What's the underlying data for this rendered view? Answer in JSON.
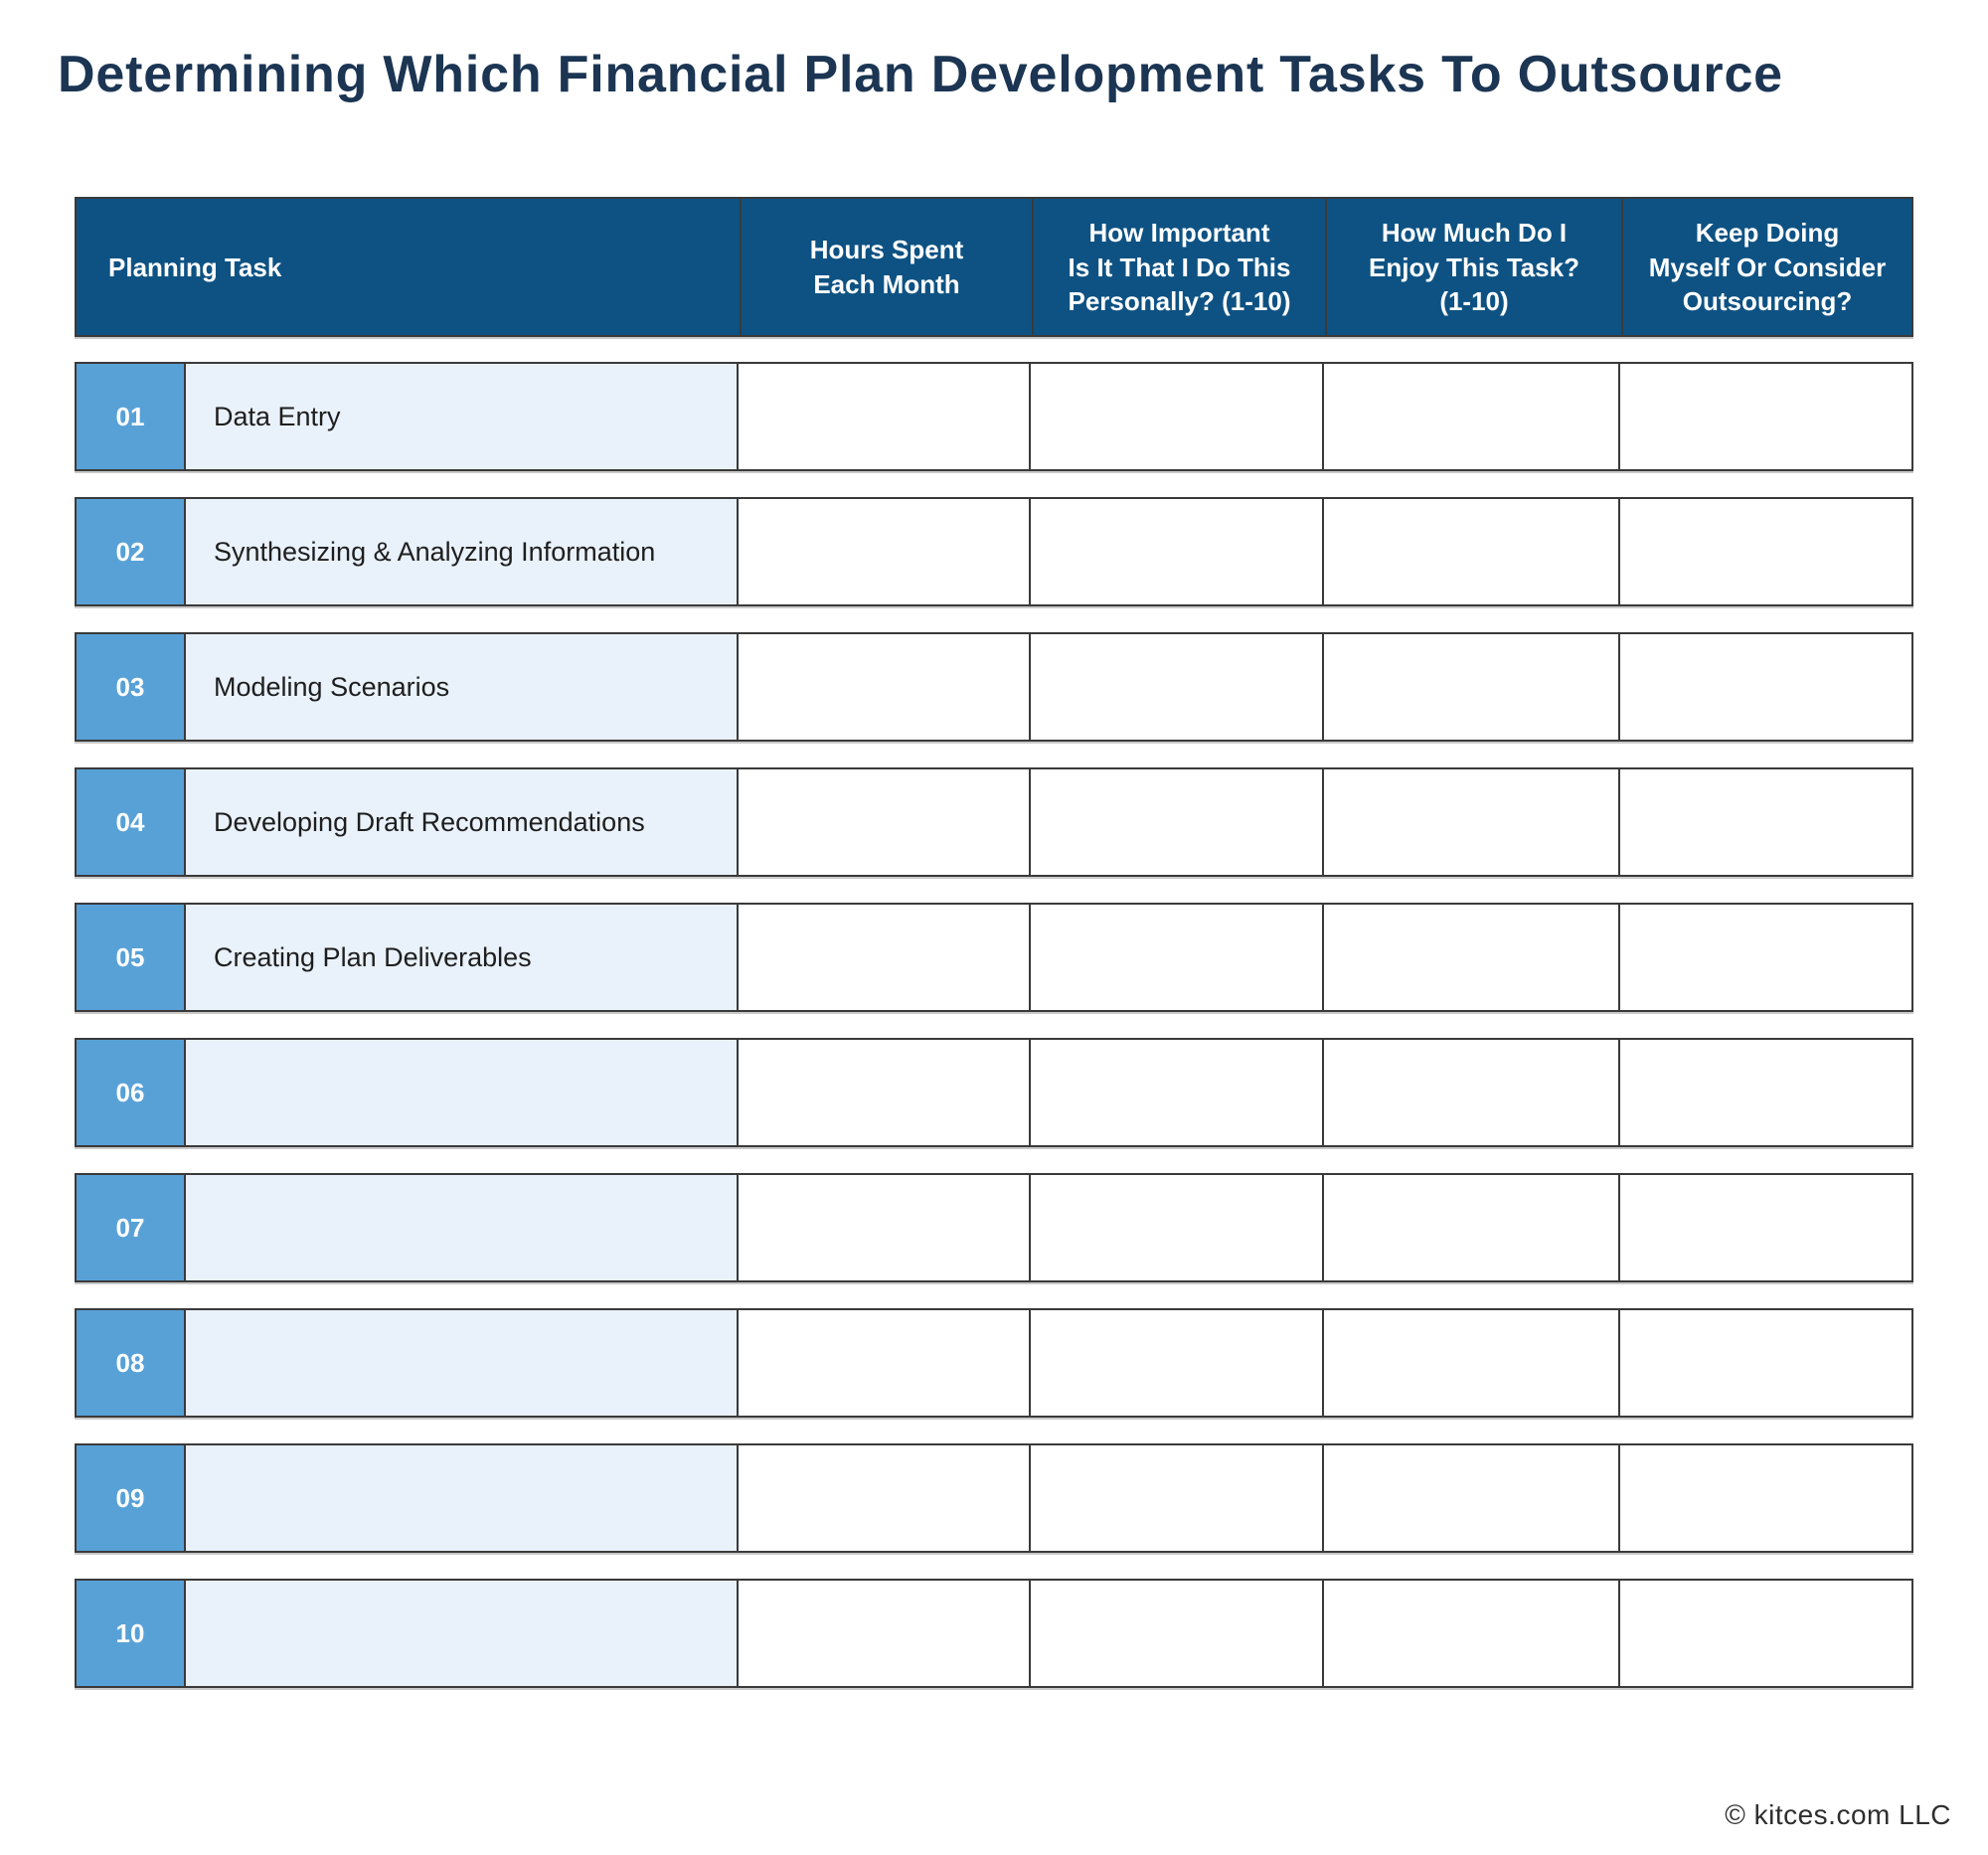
{
  "title": "Determining Which Financial Plan Development Tasks To Outsource",
  "colors": {
    "header_bg": "#0E5283",
    "badge_bg": "#58A1D7",
    "task_cell_bg": "#E9F1FA",
    "title_color": "#1B3553",
    "border": "#3A3A3A"
  },
  "table": {
    "headers": [
      {
        "label": "Planning Task"
      },
      {
        "label": "Hours Spent\nEach Month"
      },
      {
        "label": "How Important\nIs It That I Do This\nPersonally? (1-10)"
      },
      {
        "label": "How Much Do I\nEnjoy This Task?\n(1-10)"
      },
      {
        "label": "Keep Doing\nMyself Or Consider\nOutsourcing?"
      }
    ],
    "rows": [
      {
        "number": "01",
        "task": "Data Entry",
        "hours": "",
        "importance": "",
        "enjoyment": "",
        "decision": ""
      },
      {
        "number": "02",
        "task": "Synthesizing & Analyzing Information",
        "hours": "",
        "importance": "",
        "enjoyment": "",
        "decision": ""
      },
      {
        "number": "03",
        "task": "Modeling Scenarios",
        "hours": "",
        "importance": "",
        "enjoyment": "",
        "decision": ""
      },
      {
        "number": "04",
        "task": "Developing Draft Recommendations",
        "hours": "",
        "importance": "",
        "enjoyment": "",
        "decision": ""
      },
      {
        "number": "05",
        "task": "Creating Plan Deliverables",
        "hours": "",
        "importance": "",
        "enjoyment": "",
        "decision": ""
      },
      {
        "number": "06",
        "task": "",
        "hours": "",
        "importance": "",
        "enjoyment": "",
        "decision": ""
      },
      {
        "number": "07",
        "task": "",
        "hours": "",
        "importance": "",
        "enjoyment": "",
        "decision": ""
      },
      {
        "number": "08",
        "task": "",
        "hours": "",
        "importance": "",
        "enjoyment": "",
        "decision": ""
      },
      {
        "number": "09",
        "task": "",
        "hours": "",
        "importance": "",
        "enjoyment": "",
        "decision": ""
      },
      {
        "number": "10",
        "task": "",
        "hours": "",
        "importance": "",
        "enjoyment": "",
        "decision": ""
      }
    ]
  },
  "footer": {
    "copyright": "© kitces.com LLC"
  }
}
